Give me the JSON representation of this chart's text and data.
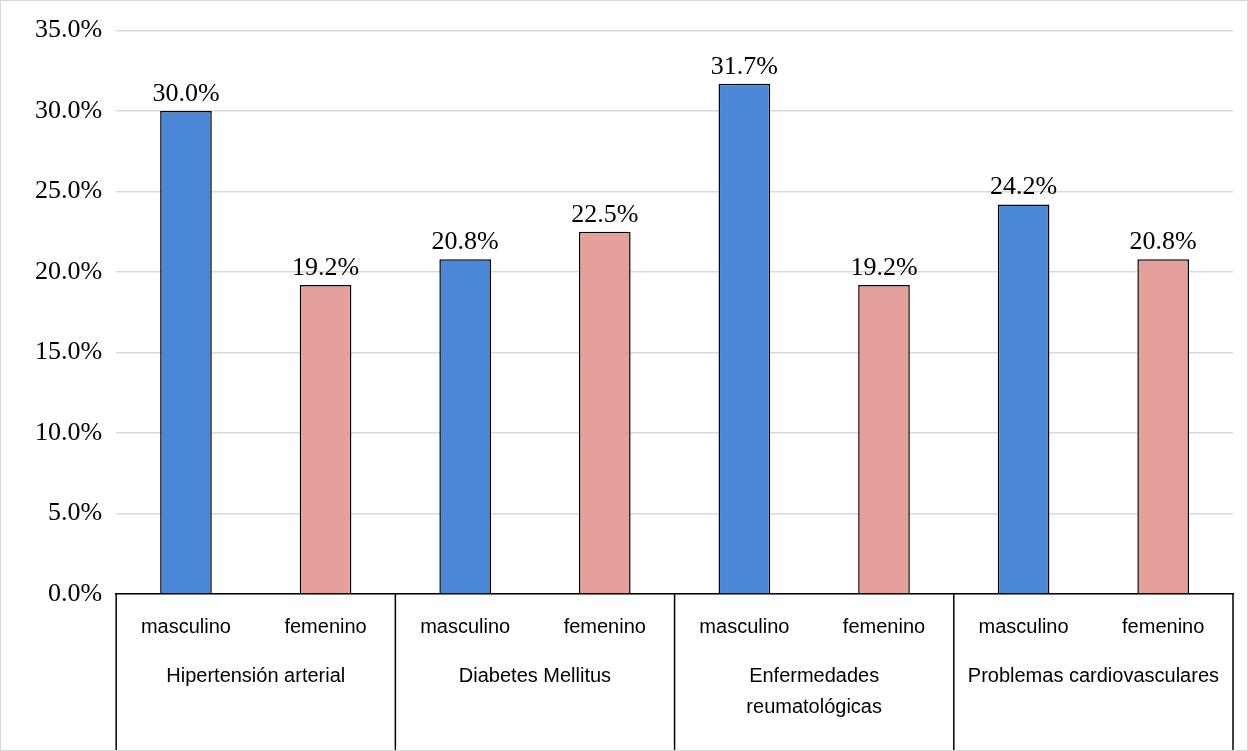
{
  "chart_data": {
    "type": "bar",
    "categories": [
      "Hipertensión arterial",
      "Diabetes Mellitus",
      "Enfermedades reumatológicas",
      "Problemas cardiovasculares"
    ],
    "series": [
      {
        "name": "masculino",
        "color": "#4a87d6",
        "values": [
          30.0,
          20.8,
          31.7,
          24.2
        ],
        "value_labels": [
          "30.0%",
          "20.8%",
          "31.7%",
          "24.2%"
        ]
      },
      {
        "name": "femenino",
        "color": "#e6a09c",
        "values": [
          19.2,
          22.5,
          19.2,
          20.8
        ],
        "value_labels": [
          "19.2%",
          "22.5%",
          "19.2%",
          "20.8%"
        ]
      }
    ],
    "ylim": [
      0,
      35
    ],
    "yticks": [
      {
        "value": 0,
        "label": "0.0%"
      },
      {
        "value": 5,
        "label": "5.0%"
      },
      {
        "value": 10,
        "label": "10.0%"
      },
      {
        "value": 15,
        "label": "15.0%"
      },
      {
        "value": 20,
        "label": "20.0%"
      },
      {
        "value": 25,
        "label": "25.0%"
      },
      {
        "value": 30,
        "label": "30.0%"
      },
      {
        "value": 35,
        "label": "35.0%"
      }
    ],
    "grid": "y",
    "legend": false
  }
}
